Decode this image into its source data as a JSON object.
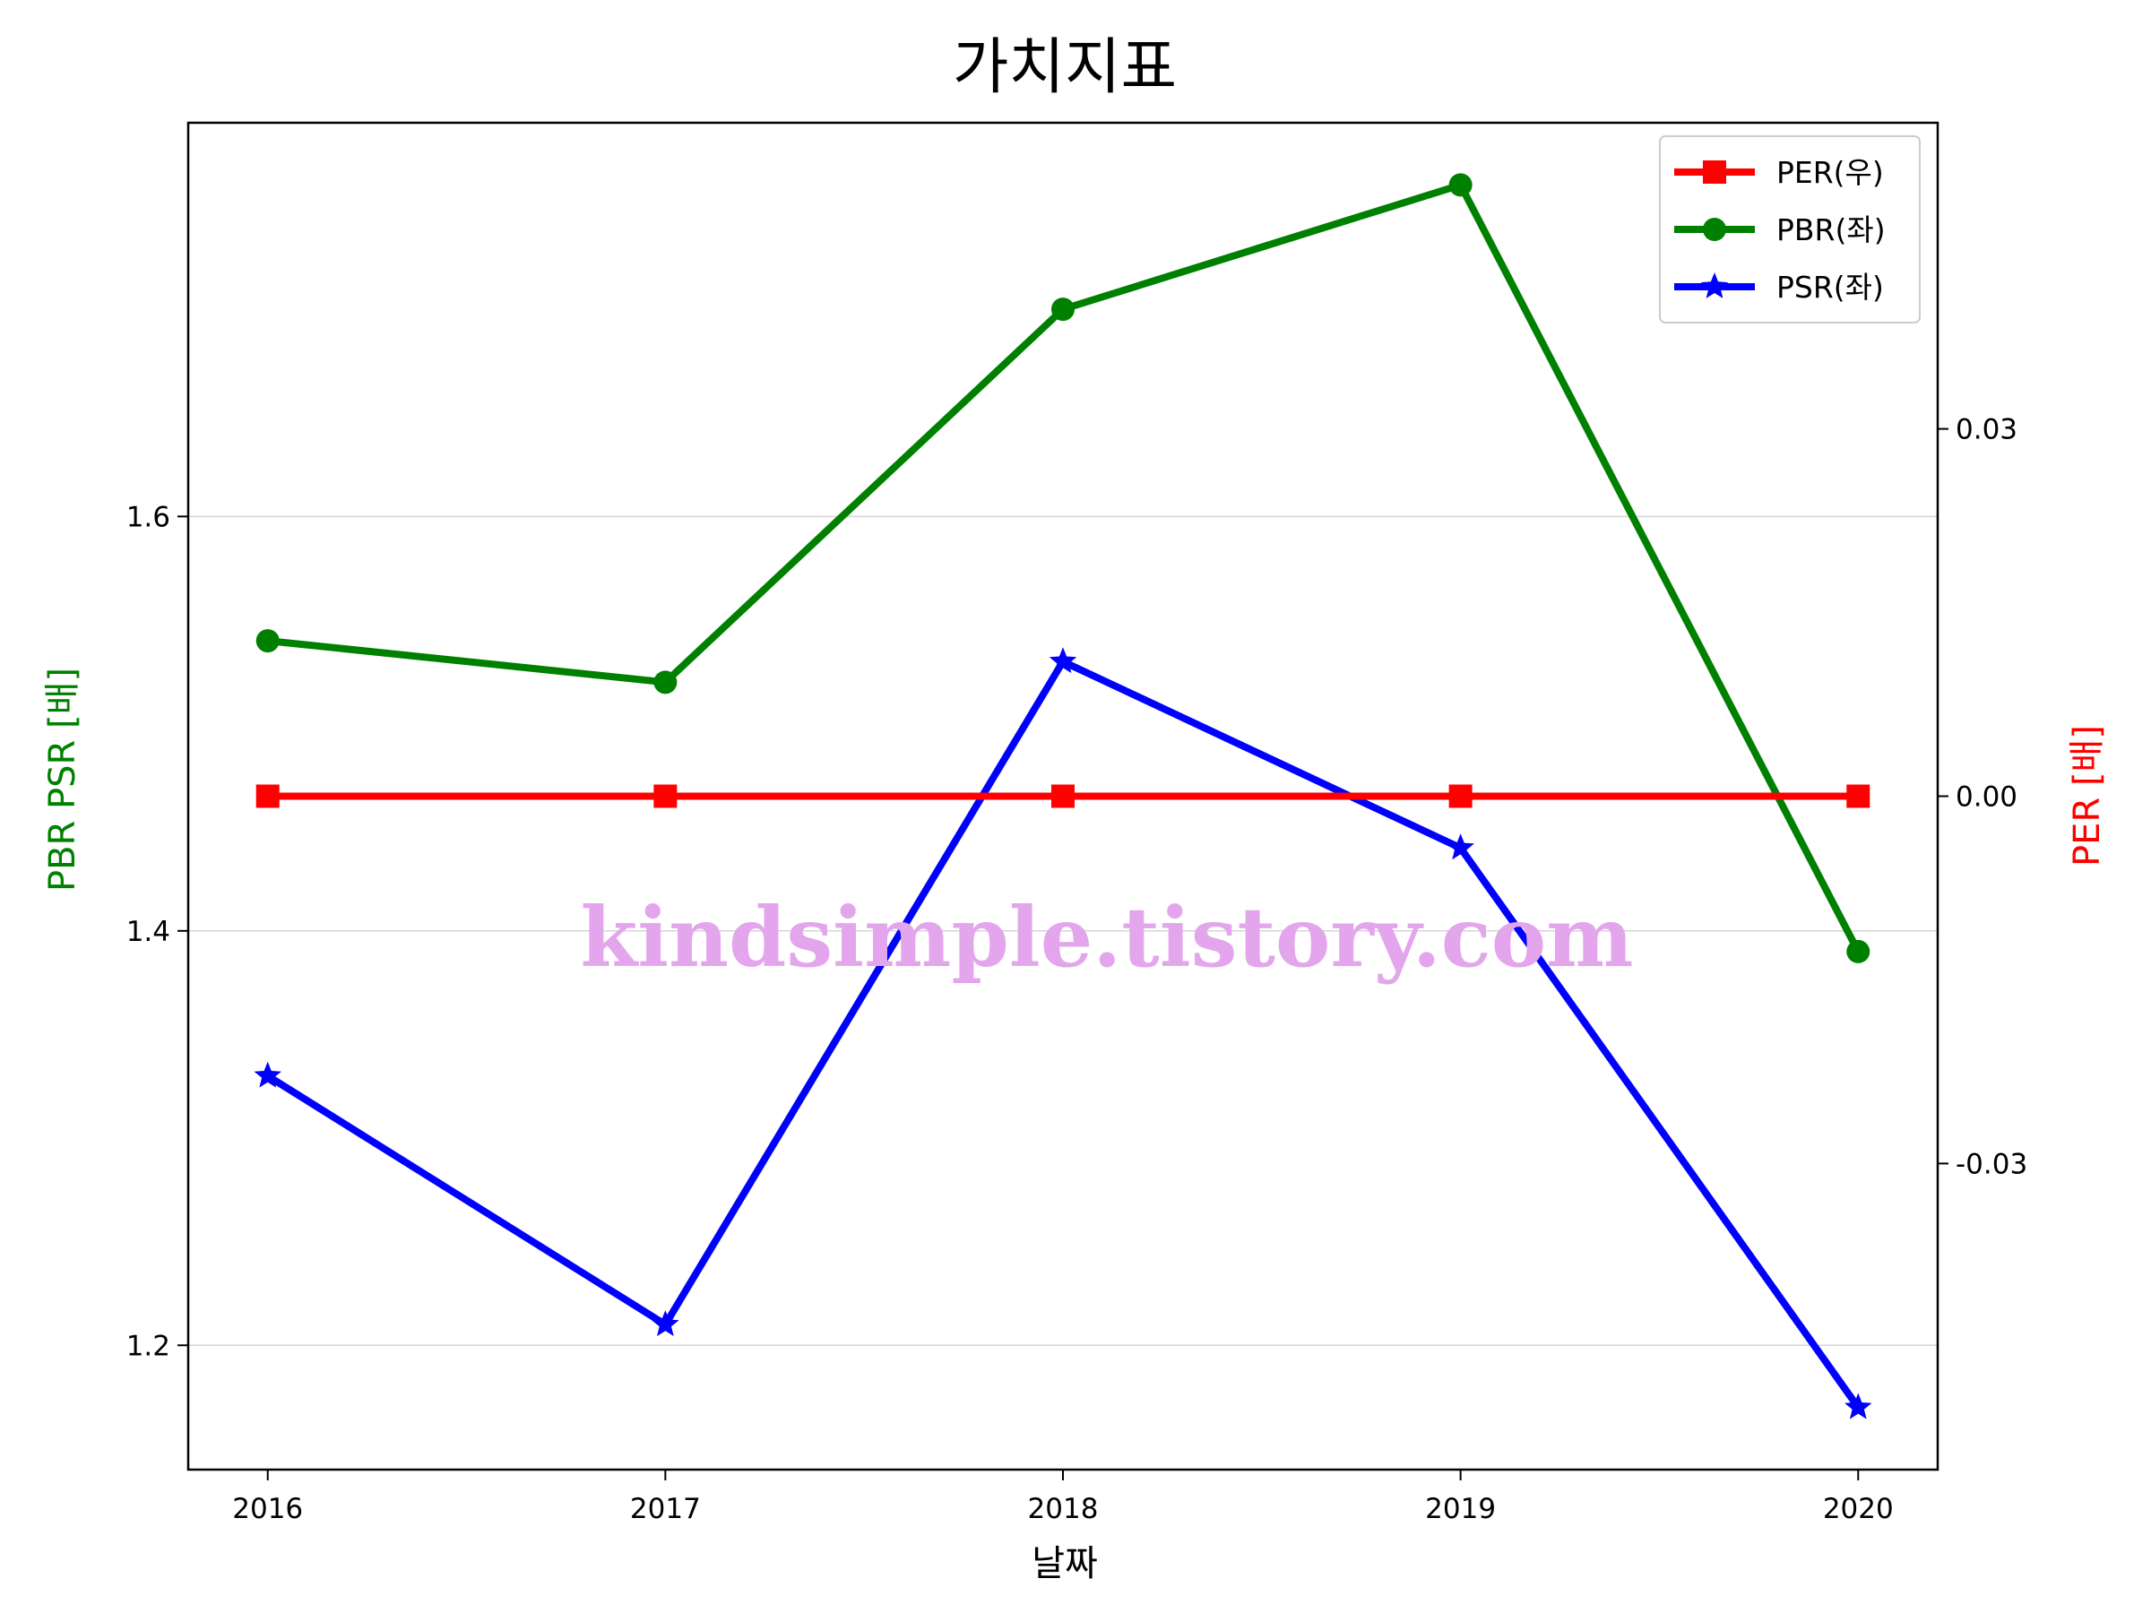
{
  "chart_data": {
    "type": "line",
    "title": "가치지표",
    "xlabel": "날짜",
    "ylabel_left": "PBR PSR [배]",
    "ylabel_right": "PER [배]",
    "ylabel_left_color": "#008000",
    "ylabel_right_color": "#ff0000",
    "categories": [
      "2016",
      "2017",
      "2018",
      "2019",
      "2020"
    ],
    "y_left_range": [
      1.14,
      1.79
    ],
    "y_left_ticks": [
      "1.2",
      "1.4",
      "1.6"
    ],
    "y_right_range": [
      -0.055,
      0.055
    ],
    "y_right_ticks": [
      "-0.03",
      "0.00",
      "0.03"
    ],
    "grid": "horizontal (left axis)",
    "legend_position": "top-right",
    "series": [
      {
        "name": "PER(우)",
        "axis": "right",
        "color": "#ff0000",
        "marker": "square",
        "values": [
          0,
          0,
          0,
          0,
          0
        ]
      },
      {
        "name": "PBR(좌)",
        "axis": "left",
        "color": "#008000",
        "marker": "circle",
        "values": [
          1.54,
          1.52,
          1.7,
          1.76,
          1.39
        ]
      },
      {
        "name": "PSR(좌)",
        "axis": "left",
        "color": "#0000ff",
        "marker": "star",
        "values": [
          1.33,
          1.21,
          1.53,
          1.44,
          1.17
        ]
      }
    ]
  },
  "watermark": "kindsimple.tistory.com"
}
